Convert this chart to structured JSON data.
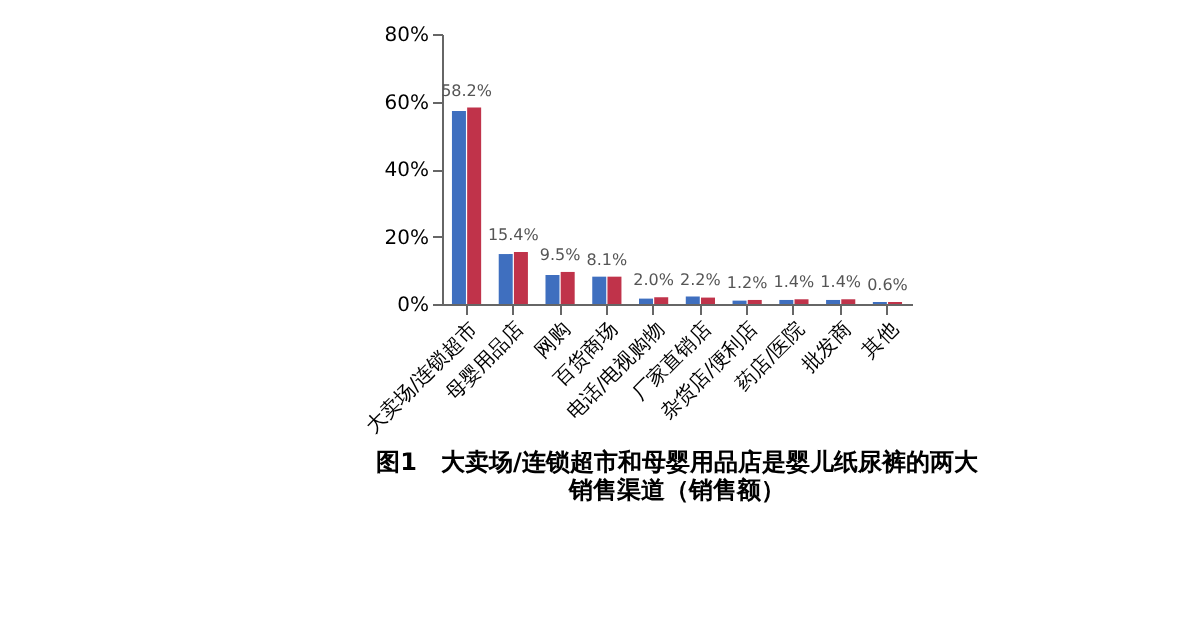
{
  "chart_data": {
    "type": "bar",
    "title": "图1　大卖场/连锁超市和母婴用品店是婴儿纸尿裤的两大销售渠道（销售额）",
    "categories": [
      "大卖场/连锁超市",
      "母婴用品店",
      "网购",
      "百货商场",
      "电话/电视购物",
      "厂家直销店",
      "杂货店/便利店",
      "药店/医院",
      "批发商",
      "其他"
    ],
    "series": [
      {
        "color": "#3f6fbf",
        "values": [
          57.2,
          14.8,
          8.6,
          8.1,
          1.6,
          2.2,
          1.0,
          1.2,
          1.2,
          0.6
        ],
        "value_labels": [
          null,
          null,
          null,
          null,
          null,
          "2.2%",
          null,
          null,
          null,
          null
        ]
      },
      {
        "color": "#c0334a",
        "values": [
          58.2,
          15.4,
          9.5,
          8.1,
          2.0,
          1.9,
          1.2,
          1.4,
          1.4,
          0.6
        ],
        "value_labels": [
          "58.2%",
          "15.4%",
          "9.5%",
          "8.1%",
          "2.0%",
          null,
          "1.2%",
          "1.4%",
          "1.4%",
          "0.6%"
        ]
      }
    ],
    "ylim": [
      0,
      80
    ],
    "yticks": [
      {
        "value": 0,
        "label": "0%"
      },
      {
        "value": 20,
        "label": "20%"
      },
      {
        "value": 40,
        "label": "40%"
      },
      {
        "value": 60,
        "label": "60%"
      },
      {
        "value": 80,
        "label": "80%"
      }
    ],
    "grid": false,
    "legend": false
  }
}
